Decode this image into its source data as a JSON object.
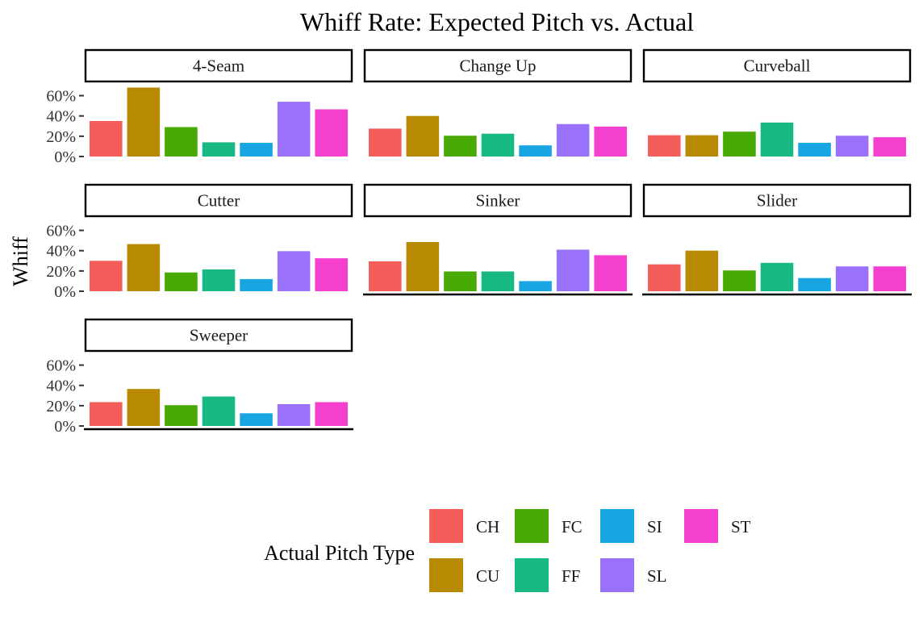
{
  "chart_data": {
    "type": "bar",
    "title": "Whiff Rate: Expected Pitch vs. Actual",
    "xlabel": "",
    "ylabel": "Whiff",
    "ylim": [
      0,
      0.7
    ],
    "y_ticks": [
      0,
      0.2,
      0.4,
      0.6
    ],
    "y_tick_labels": [
      "0%",
      "20%",
      "40%",
      "60%"
    ],
    "categories": [
      "CH",
      "CU",
      "FC",
      "FF",
      "SI",
      "SL",
      "ST"
    ],
    "legend_title": "Actual Pitch Type",
    "legend_position": "bottom",
    "legend_order": [
      "CH",
      "CU",
      "FC",
      "FF",
      "SI",
      "SL",
      "ST"
    ],
    "colors": {
      "CH": "#F35E5A",
      "CU": "#B88A04",
      "FC": "#48A904",
      "FF": "#17B884",
      "SI": "#18A5E1",
      "SL": "#9A72FA",
      "ST": "#F540CF"
    },
    "facets": [
      {
        "label": "4-Seam",
        "values": [
          0.35,
          0.68,
          0.29,
          0.14,
          0.135,
          0.54,
          0.465
        ]
      },
      {
        "label": "Change Up",
        "values": [
          0.275,
          0.4,
          0.205,
          0.225,
          0.11,
          0.32,
          0.295
        ]
      },
      {
        "label": "Curveball",
        "values": [
          0.21,
          0.21,
          0.245,
          0.335,
          0.135,
          0.205,
          0.19
        ]
      },
      {
        "label": "Cutter",
        "values": [
          0.3,
          0.465,
          0.185,
          0.215,
          0.12,
          0.395,
          0.325
        ]
      },
      {
        "label": "Sinker",
        "values": [
          0.295,
          0.485,
          0.195,
          0.195,
          0.1,
          0.41,
          0.355
        ]
      },
      {
        "label": "Slider",
        "values": [
          0.265,
          0.4,
          0.205,
          0.28,
          0.13,
          0.245,
          0.245
        ]
      },
      {
        "label": "Sweeper",
        "values": [
          0.235,
          0.365,
          0.205,
          0.29,
          0.125,
          0.215,
          0.235
        ]
      }
    ]
  }
}
